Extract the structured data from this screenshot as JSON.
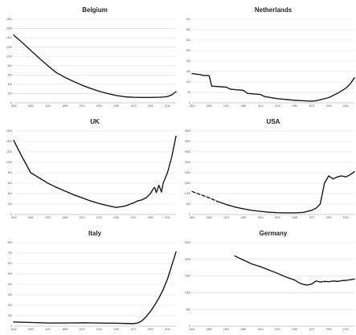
{
  "chart_data": [
    {
      "type": "line",
      "title": "Belgium",
      "xlabel": "",
      "ylabel": "",
      "xlim": [
        1830,
        2020
      ],
      "ylim": [
        0,
        1800
      ],
      "xticks": [
        1830,
        1850,
        1870,
        1890,
        1910,
        1930,
        1950,
        1970,
        1990,
        2010
      ],
      "yticks": [
        0,
        200,
        400,
        600,
        800,
        1000,
        1200,
        1400,
        1600,
        1800
      ],
      "grid": true,
      "series": [
        {
          "x": [
            1830,
            1840,
            1850,
            1860,
            1870,
            1880,
            1890,
            1900,
            1910,
            1920,
            1930,
            1940,
            1950,
            1960,
            1970,
            1980,
            1990,
            2000,
            2005,
            2010,
            2015,
            2020
          ],
          "y": [
            1460,
            1300,
            1130,
            960,
            800,
            650,
            550,
            460,
            380,
            310,
            250,
            200,
            160,
            130,
            120,
            115,
            115,
            120,
            125,
            135,
            170,
            240
          ]
        }
      ]
    },
    {
      "type": "line",
      "title": "Netherlands",
      "xlabel": "",
      "ylabel": "",
      "xlim": [
        1830,
        2020
      ],
      "ylim": [
        0,
        400
      ],
      "xticks": [
        1830,
        1850,
        1870,
        1890,
        1910,
        1930,
        1950,
        1970,
        1990,
        2010
      ],
      "yticks": [
        0,
        50,
        100,
        150,
        200,
        250,
        300,
        350,
        400
      ],
      "grid": true,
      "series": [
        {
          "x": [
            1830,
            1840,
            1842,
            1850,
            1853,
            1870,
            1875,
            1890,
            1895,
            1910,
            1915,
            1930,
            1950,
            1960,
            1970,
            1975,
            1990,
            2000,
            2010,
            2015,
            2020
          ],
          "y": [
            140,
            135,
            132,
            130,
            80,
            75,
            65,
            60,
            45,
            40,
            30,
            20,
            12,
            10,
            8,
            10,
            25,
            45,
            70,
            90,
            120
          ]
        }
      ]
    },
    {
      "type": "line",
      "title": "UK",
      "xlabel": "",
      "ylabel": "",
      "xlim": [
        1830,
        2020
      ],
      "ylim": [
        0,
        1600
      ],
      "xticks": [
        1830,
        1850,
        1870,
        1890,
        1910,
        1930,
        1950,
        1970,
        1990,
        2010
      ],
      "yticks": [
        0,
        200,
        400,
        600,
        800,
        1000,
        1200,
        1400,
        1600
      ],
      "grid": true,
      "series": [
        {
          "x": [
            1830,
            1840,
            1850,
            1860,
            1870,
            1880,
            1890,
            1900,
            1910,
            1920,
            1930,
            1940,
            1950,
            1960,
            1970,
            1975,
            1980,
            1985,
            1990,
            1993,
            1995,
            1997,
            2000,
            2003,
            2005,
            2010,
            2015,
            2020
          ],
          "y": [
            1420,
            1100,
            800,
            700,
            600,
            520,
            450,
            380,
            320,
            260,
            210,
            170,
            135,
            160,
            220,
            260,
            280,
            320,
            400,
            480,
            520,
            420,
            560,
            430,
            600,
            800,
            1100,
            1500
          ]
        }
      ]
    },
    {
      "type": "line",
      "title": "USA",
      "xlabel": "",
      "ylabel": "",
      "xlim": [
        1830,
        2020
      ],
      "ylim": [
        0,
        4000
      ],
      "xticks": [
        1830,
        1850,
        1870,
        1890,
        1910,
        1930,
        1950,
        1970,
        1990,
        2010
      ],
      "yticks": [
        0,
        500,
        1000,
        1500,
        2000,
        2500,
        3000,
        3500,
        4000
      ],
      "grid": true,
      "series": [
        {
          "x": [
            1830,
            1840,
            1850,
            1860
          ],
          "y": [
            1100,
            950,
            800,
            620
          ],
          "style": "dashed"
        },
        {
          "x": [
            1860,
            1870,
            1880,
            1890,
            1900,
            1910,
            1920,
            1930,
            1940,
            1950,
            1960,
            1970,
            1975,
            1980,
            1985,
            1990,
            1995,
            2000,
            2005,
            2010,
            2015,
            2020
          ],
          "y": [
            620,
            480,
            360,
            270,
            200,
            150,
            110,
            90,
            80,
            80,
            100,
            200,
            300,
            500,
            1500,
            1850,
            1700,
            1800,
            1850,
            1800,
            1900,
            2050
          ]
        }
      ]
    },
    {
      "type": "line",
      "title": "Italy",
      "xlabel": "",
      "ylabel": "",
      "xlim": [
        1830,
        2020
      ],
      "ylim": [
        0,
        800
      ],
      "xticks": [
        1830,
        1850,
        1870,
        1890,
        1910,
        1930,
        1950,
        1970,
        1990,
        2010
      ],
      "yticks": [
        0,
        100,
        200,
        300,
        400,
        500,
        600,
        700,
        800
      ],
      "grid": true,
      "series": [
        {
          "x": [
            1830,
            1850,
            1870,
            1890,
            1910,
            1930,
            1950,
            1960,
            1970,
            1975,
            1980,
            1985,
            1990,
            1995,
            2000,
            2005,
            2010,
            2015,
            2020
          ],
          "y": [
            40,
            35,
            30,
            30,
            32,
            30,
            28,
            26,
            24,
            30,
            50,
            90,
            140,
            200,
            270,
            350,
            450,
            580,
            710
          ]
        }
      ]
    },
    {
      "type": "line",
      "title": "Germany",
      "xlabel": "",
      "ylabel": "",
      "xlim": [
        1830,
        2020
      ],
      "ylim": [
        0,
        2500
      ],
      "xticks": [
        1830,
        1850,
        1870,
        1890,
        1910,
        1930,
        1950,
        1970,
        1990,
        2010
      ],
      "yticks": [
        0,
        500,
        1000,
        1500,
        2000,
        2500
      ],
      "grid": true,
      "series": [
        {
          "x": [
            1880,
            1890,
            1900,
            1910,
            1920,
            1930,
            1940,
            1950,
            1955,
            1960,
            1965,
            1970,
            1975,
            1980,
            1985,
            1990,
            1995,
            2000,
            2005,
            2010,
            2015,
            2020
          ],
          "y": [
            2100,
            1980,
            1860,
            1780,
            1680,
            1580,
            1470,
            1380,
            1300,
            1250,
            1230,
            1260,
            1350,
            1320,
            1340,
            1330,
            1350,
            1340,
            1360,
            1370,
            1390,
            1410
          ]
        }
      ]
    }
  ]
}
